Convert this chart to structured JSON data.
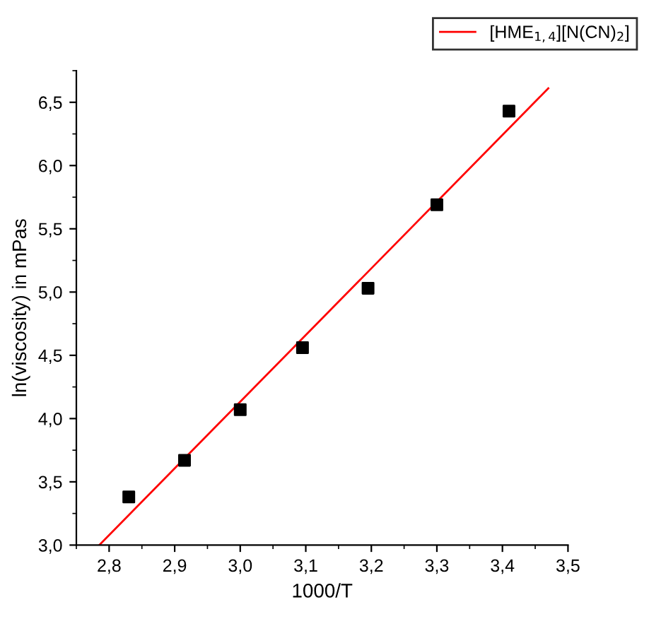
{
  "chart_data": {
    "type": "scatter",
    "xlabel": "1000/T",
    "ylabel": "ln(viscosity) in mPas",
    "xlim": [
      2.75,
      3.5
    ],
    "ylim": [
      3.0,
      6.75
    ],
    "xticks": [
      {
        "value": 2.8,
        "label": "2,8"
      },
      {
        "value": 2.9,
        "label": "2,9"
      },
      {
        "value": 3.0,
        "label": "3,0"
      },
      {
        "value": 3.1,
        "label": "3,1"
      },
      {
        "value": 3.2,
        "label": "3,2"
      },
      {
        "value": 3.3,
        "label": "3,3"
      },
      {
        "value": 3.4,
        "label": "3,4"
      },
      {
        "value": 3.5,
        "label": "3,5"
      }
    ],
    "yticks": [
      {
        "value": 3.0,
        "label": "3,0"
      },
      {
        "value": 3.5,
        "label": "3,5"
      },
      {
        "value": 4.0,
        "label": "4,0"
      },
      {
        "value": 4.5,
        "label": "4,5"
      },
      {
        "value": 5.0,
        "label": "5,0"
      },
      {
        "value": 5.5,
        "label": "5,5"
      },
      {
        "value": 6.0,
        "label": "6,0"
      },
      {
        "value": 6.5,
        "label": "6,5"
      }
    ],
    "grid": false,
    "legend": "top right",
    "series": [
      {
        "marker": "square",
        "color": "#000000",
        "x": [
          2.83,
          2.915,
          3.0,
          3.095,
          3.195,
          3.3,
          3.41
        ],
        "values": [
          3.38,
          3.67,
          4.07,
          4.56,
          5.03,
          5.69,
          6.43
        ]
      },
      {
        "type": "line",
        "marker": "none",
        "name": "[HME$_{1,4}$][N(CN)$_{2}$]",
        "color": "#ff0000",
        "line_style": "solid",
        "x": [
          2.785,
          3.47
        ],
        "values": [
          3.0,
          6.61
        ]
      }
    ]
  }
}
